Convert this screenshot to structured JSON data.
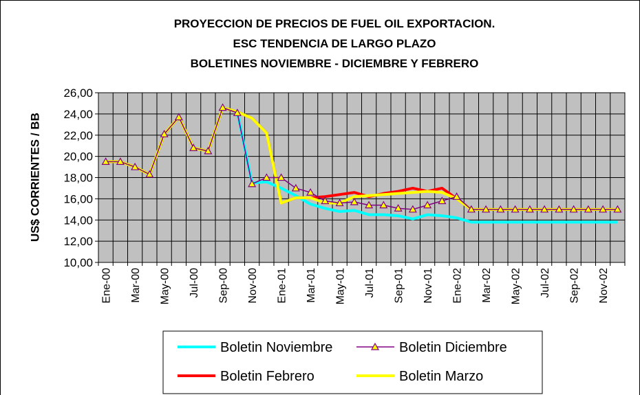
{
  "chart_data": {
    "type": "line",
    "title": [
      "PROYECCION DE PRECIOS DE FUEL OIL EXPORTACION.",
      "ESC TENDENCIA DE LARGO PLAZO",
      "BOLETINES    NOVIEMBRE - DICIEMBRE Y FEBRERO"
    ],
    "y_label": "US$ CORRIENTES / BB",
    "categories": [
      "Ene-00",
      null,
      "Mar-00",
      null,
      "May-00",
      null,
      "Jul-00",
      null,
      "Sep-00",
      null,
      "Nov-00",
      null,
      "Ene-01",
      null,
      "Mar-01",
      null,
      "May-01",
      null,
      "Jul-01",
      null,
      "Sep-01",
      null,
      "Nov-01",
      null,
      "Ene-02",
      null,
      "Mar-02",
      null,
      "May-02",
      null,
      "Jul-02",
      null,
      "Sep-02",
      null,
      "Nov-02",
      null
    ],
    "series": [
      {
        "name": "Boletin Noviembre",
        "color": "#00ffff",
        "values": [
          19.5,
          19.5,
          19.0,
          18.3,
          22.1,
          23.7,
          20.8,
          20.5,
          24.6,
          24.2,
          17.5,
          17.6,
          17.0,
          16.3,
          15.5,
          15.1,
          14.8,
          14.9,
          14.5,
          14.5,
          14.4,
          14.1,
          14.5,
          14.4,
          14.2,
          13.8,
          13.8,
          13.8,
          13.8,
          13.8,
          13.8,
          13.8,
          13.8,
          13.8,
          13.8,
          13.8
        ]
      },
      {
        "name": "Boletin Diciembre",
        "color": "#800080",
        "marker": "triangle",
        "values": [
          19.5,
          19.5,
          19.0,
          18.3,
          22.1,
          23.7,
          20.8,
          20.5,
          24.6,
          24.1,
          17.4,
          18.0,
          18.0,
          17.0,
          16.6,
          15.8,
          15.6,
          15.7,
          15.4,
          15.4,
          15.1,
          15.0,
          15.4,
          15.8,
          16.2,
          15.0,
          15.0,
          15.0,
          15.0,
          15.0,
          15.0,
          15.0,
          15.0,
          15.0,
          15.0,
          15.0
        ]
      },
      {
        "name": "Boletin Febrero",
        "color": "#ff0000",
        "values": [
          19.5,
          19.5,
          19.0,
          18.3,
          22.1,
          23.7,
          20.8,
          20.5,
          24.6,
          24.2,
          23.6,
          22.2,
          15.6,
          16.1,
          16.1,
          16.2,
          16.4,
          16.6,
          16.2,
          16.5,
          16.7,
          17.0,
          16.7,
          17.0,
          16.0,
          15.0,
          15.0,
          15.0,
          15.0,
          15.0,
          15.0,
          15.0,
          15.0,
          15.0,
          15.0,
          15.0
        ]
      },
      {
        "name": "Boletin Marzo",
        "color": "#ffff00",
        "values": [
          19.5,
          19.5,
          19.0,
          18.3,
          22.1,
          23.7,
          20.8,
          20.5,
          24.6,
          24.2,
          23.6,
          22.2,
          15.6,
          16.1,
          16.1,
          15.6,
          15.6,
          16.2,
          16.3,
          16.4,
          16.5,
          16.6,
          16.7,
          16.6,
          16.0,
          15.0,
          15.0,
          15.0,
          15.0,
          15.0,
          15.0,
          15.0,
          15.0,
          15.0,
          15.0,
          15.0
        ]
      }
    ],
    "ylim": [
      10,
      26
    ],
    "yticks": [
      {
        "value": 10,
        "label": "10,00"
      },
      {
        "value": 12,
        "label": "12,00"
      },
      {
        "value": 14,
        "label": "14,00"
      },
      {
        "value": 16,
        "label": "16,00"
      },
      {
        "value": 18,
        "label": "18,00"
      },
      {
        "value": 20,
        "label": "20,00"
      },
      {
        "value": 22,
        "label": "22,00"
      },
      {
        "value": 24,
        "label": "24,00"
      },
      {
        "value": 26,
        "label": "26,00"
      }
    ],
    "grid": true
  }
}
